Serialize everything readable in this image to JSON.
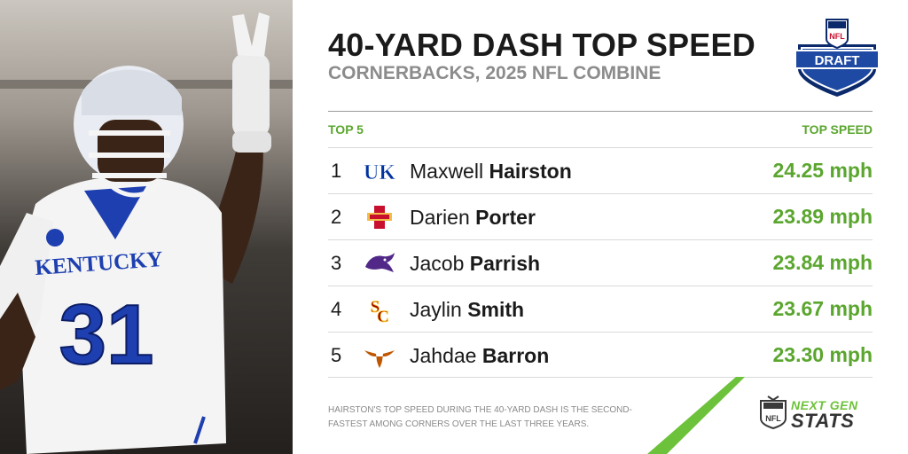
{
  "header": {
    "title": "40-YARD DASH TOP SPEED",
    "subtitle": "CORNERBACKS, 2025 NFL COMBINE"
  },
  "draft_logo": {
    "nfl_text": "NFL",
    "draft_text": "DRAFT"
  },
  "table": {
    "left_header": "TOP 5",
    "right_header": "TOP SPEED",
    "rows": [
      {
        "rank": "1",
        "first": "Maxwell",
        "last": "Hairston",
        "speed": "24.25 mph",
        "logo": "kentucky-logo"
      },
      {
        "rank": "2",
        "first": "Darien",
        "last": "Porter",
        "speed": "23.89 mph",
        "logo": "iowa-state-logo"
      },
      {
        "rank": "3",
        "first": "Jacob",
        "last": "Parrish",
        "speed": "23.84 mph",
        "logo": "kansas-state-logo"
      },
      {
        "rank": "4",
        "first": "Jaylin",
        "last": "Smith",
        "speed": "23.67 mph",
        "logo": "usc-logo"
      },
      {
        "rank": "5",
        "first": "Jahdae",
        "last": "Barron",
        "speed": "23.30 mph",
        "logo": "texas-logo"
      }
    ]
  },
  "footnote": "HAIRSTON'S TOP SPEED DURING THE 40-YARD DASH IS THE SECOND-FASTEST AMONG CORNERS OVER THE LAST THREE YEARS.",
  "branding": {
    "next_gen": "NEXT GEN",
    "stats": "STATS"
  },
  "photo": {
    "jersey_text": "KENTUCKY",
    "jersey_number": "31"
  },
  "colors": {
    "accent_green": "#5aa62e",
    "title": "#1a1a1a",
    "subtitle": "#8c8c8c",
    "kentucky_blue": "#0033a0",
    "iowa_state_red": "#c8102e",
    "kansas_state_purple": "#512888",
    "usc_cardinal": "#990000",
    "texas_orange": "#bf5700"
  }
}
